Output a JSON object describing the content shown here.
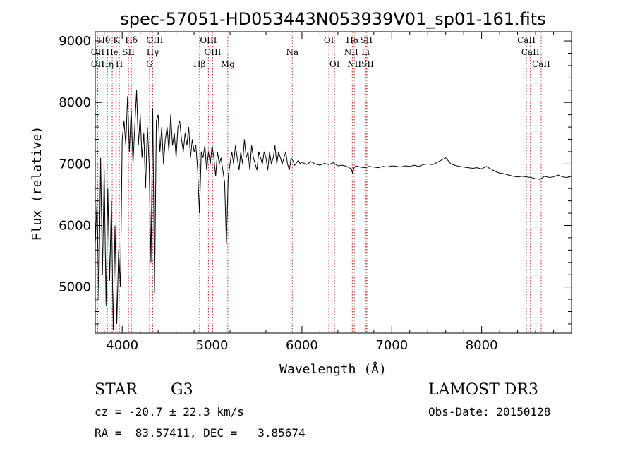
{
  "chart_data": {
    "type": "line",
    "title": "spec-57051-HD053443N053939V01_sp01-161.fits",
    "xlabel": "Wavelength (Å)",
    "ylabel": "Flux (relative)",
    "xlim": [
      3700,
      9000
    ],
    "ylim": [
      4250,
      9150
    ],
    "x_ticks": [
      4000,
      5000,
      6000,
      7000,
      8000
    ],
    "y_ticks": [
      5000,
      6000,
      7000,
      8000,
      9000
    ],
    "grid": false,
    "series": [
      {
        "name": "flux",
        "x": [
          3700,
          3720,
          3740,
          3760,
          3780,
          3800,
          3820,
          3840,
          3860,
          3880,
          3900,
          3920,
          3940,
          3960,
          3980,
          4000,
          4020,
          4040,
          4060,
          4080,
          4100,
          4120,
          4140,
          4160,
          4180,
          4200,
          4220,
          4240,
          4260,
          4280,
          4300,
          4320,
          4340,
          4360,
          4380,
          4400,
          4420,
          4440,
          4460,
          4480,
          4500,
          4520,
          4540,
          4560,
          4580,
          4600,
          4620,
          4640,
          4660,
          4680,
          4700,
          4720,
          4740,
          4760,
          4780,
          4800,
          4820,
          4840,
          4860,
          4880,
          4900,
          4920,
          4940,
          4960,
          4980,
          5000,
          5020,
          5040,
          5060,
          5080,
          5100,
          5120,
          5140,
          5160,
          5180,
          5200,
          5220,
          5240,
          5260,
          5280,
          5300,
          5320,
          5340,
          5360,
          5380,
          5400,
          5420,
          5440,
          5460,
          5480,
          5500,
          5520,
          5540,
          5560,
          5580,
          5600,
          5620,
          5640,
          5660,
          5680,
          5700,
          5720,
          5740,
          5760,
          5780,
          5800,
          5820,
          5840,
          5860,
          5880,
          5900,
          5920,
          5940,
          5960,
          5980,
          6000,
          6050,
          6100,
          6150,
          6200,
          6250,
          6300,
          6350,
          6400,
          6450,
          6500,
          6550,
          6563,
          6580,
          6600,
          6650,
          6700,
          6750,
          6800,
          6850,
          6900,
          6950,
          7000,
          7050,
          7100,
          7150,
          7200,
          7250,
          7300,
          7350,
          7400,
          7450,
          7500,
          7550,
          7600,
          7630,
          7660,
          7700,
          7750,
          7800,
          7850,
          7900,
          7950,
          8000,
          8050,
          8100,
          8150,
          8200,
          8250,
          8300,
          8350,
          8400,
          8450,
          8500,
          8550,
          8600,
          8650,
          8700,
          8750,
          8800,
          8850,
          8900,
          8950,
          9000
        ],
        "y": [
          5700,
          6400,
          4800,
          7100,
          5200,
          6900,
          4700,
          6600,
          5100,
          6400,
          4300,
          6000,
          4400,
          5600,
          5000,
          7400,
          7700,
          7300,
          8100,
          7200,
          7900,
          7000,
          7600,
          8200,
          7300,
          7800,
          7100,
          7500,
          6600,
          7600,
          7000,
          5400,
          7900,
          4900,
          7700,
          7800,
          7200,
          7600,
          7000,
          7400,
          7600,
          7200,
          7800,
          7300,
          7500,
          7100,
          7600,
          7700,
          7400,
          7200,
          7500,
          7300,
          7600,
          7100,
          7400,
          7200,
          7300,
          6900,
          6200,
          7200,
          7100,
          7300,
          6900,
          7200,
          7000,
          7300,
          7100,
          6800,
          7200,
          7000,
          7100,
          6900,
          6700,
          5700,
          6800,
          7000,
          7200,
          7000,
          7300,
          7100,
          6900,
          7200,
          7000,
          7400,
          7100,
          7200,
          6900,
          7300,
          7100,
          7000,
          6900,
          7200,
          7100,
          7000,
          7200,
          7100,
          6900,
          7200,
          7000,
          7100,
          7300,
          7000,
          7200,
          7100,
          7000,
          7100,
          7200,
          7000,
          6900,
          7100,
          7050,
          6980,
          7020,
          7060,
          7000,
          7030,
          6990,
          7040,
          7000,
          6980,
          7010,
          6990,
          7020,
          6970,
          6980,
          6960,
          6920,
          6850,
          6940,
          6970,
          6950,
          6940,
          6960,
          6950,
          6940,
          6960,
          6950,
          6970,
          6960,
          6950,
          6970,
          6960,
          6980,
          6960,
          6990,
          7000,
          6990,
          7020,
          7060,
          7100,
          7050,
          7000,
          6980,
          6960,
          6950,
          6940,
          6930,
          6940,
          6920,
          6960,
          6920,
          6880,
          6850,
          6840,
          6820,
          6800,
          6790,
          6800,
          6790,
          6780,
          6760,
          6750,
          6800,
          6780,
          6790,
          6820,
          6790,
          6780,
          6800
        ]
      }
    ],
    "lines": [
      {
        "label": "Hθ",
        "x": 3797,
        "row": 0
      },
      {
        "label": "OII",
        "x": 3727,
        "row": 1
      },
      {
        "label": "OII",
        "x": 3727,
        "row": 2
      },
      {
        "label": "Hη",
        "x": 3835,
        "row": 2
      },
      {
        "label": "K",
        "x": 3934,
        "row": 0
      },
      {
        "label": "He",
        "x": 3889,
        "row": 1
      },
      {
        "label": "H",
        "x": 3968,
        "row": 2
      },
      {
        "label": "SII",
        "x": 4070,
        "row": 1
      },
      {
        "label": "Hδ",
        "x": 4102,
        "row": 0
      },
      {
        "label": "OIII",
        "x": 4363,
        "row": 0
      },
      {
        "label": "Hγ",
        "x": 4340,
        "row": 1
      },
      {
        "label": "G",
        "x": 4304,
        "row": 2
      },
      {
        "label": "Hβ",
        "x": 4861,
        "row": 2
      },
      {
        "label": "OIII",
        "x": 4959,
        "row": 0
      },
      {
        "label": "OIII",
        "x": 5007,
        "row": 1
      },
      {
        "label": "Mg",
        "x": 5175,
        "row": 2
      },
      {
        "label": "Na",
        "x": 5893,
        "row": 1
      },
      {
        "label": "OI",
        "x": 6300,
        "row": 0
      },
      {
        "label": "OI",
        "x": 6363,
        "row": 2
      },
      {
        "label": "Hα",
        "x": 6563,
        "row": 0
      },
      {
        "label": "NII",
        "x": 6548,
        "row": 1
      },
      {
        "label": "NII",
        "x": 6583,
        "row": 2
      },
      {
        "label": "SII",
        "x": 6717,
        "row": 0
      },
      {
        "label": "Li",
        "x": 6708,
        "row": 1
      },
      {
        "label": "SII",
        "x": 6731,
        "row": 2
      },
      {
        "label": "CaII",
        "x": 8498,
        "row": 0
      },
      {
        "label": "CaII",
        "x": 8542,
        "row": 1
      },
      {
        "label": "CaII",
        "x": 8662,
        "row": 2
      }
    ]
  },
  "footer": {
    "class": "STAR",
    "subclass": "G3",
    "survey": "LAMOST DR3",
    "cz": "cz = -20.7 ± 22.3 km/s",
    "obs_date": "Obs-Date: 20150128",
    "coords": "RA =  83.57411, DEC =   3.85674"
  },
  "colors": {
    "ink": "#000000",
    "line_marker": "#cc2020"
  }
}
